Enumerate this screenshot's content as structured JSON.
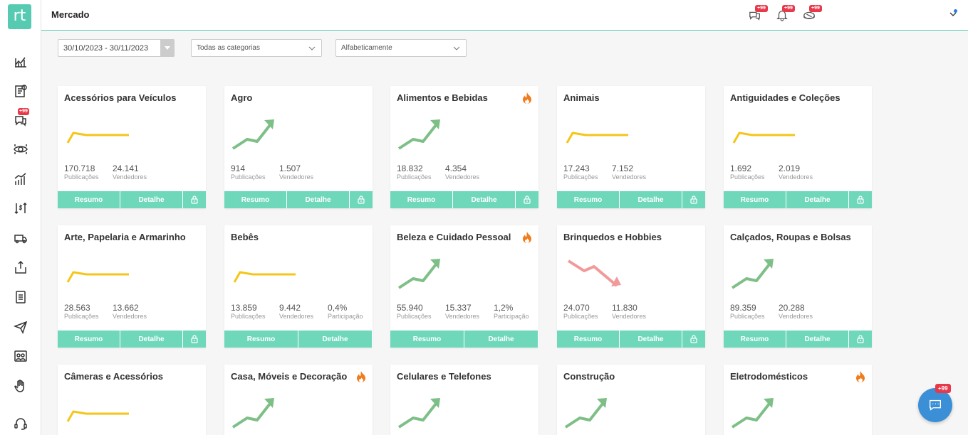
{
  "app": {
    "logo_text": "rt",
    "page_title": "Mercado"
  },
  "sidebar": {
    "items": [
      {
        "icon": "chart-line-icon"
      },
      {
        "icon": "invoice-icon"
      },
      {
        "icon": "chat-bubbles-icon",
        "badge": "+99"
      },
      {
        "icon": "eye-icon"
      },
      {
        "icon": "bar-chart-icon",
        "active": true
      },
      {
        "icon": "money-transfer-icon"
      },
      {
        "icon": "truck-icon"
      },
      {
        "icon": "upload-box-icon"
      },
      {
        "icon": "document-icon"
      },
      {
        "icon": "paper-plane-icon"
      },
      {
        "icon": "users-icon"
      },
      {
        "icon": "hand-icon"
      },
      {
        "icon": "headset-icon"
      }
    ]
  },
  "topbar": {
    "chat_badge": "+99",
    "bell_badge": "+99",
    "box_badge": "+99"
  },
  "filters": {
    "date_range": "30/10/2023 - 30/11/2023",
    "category": "Todas as categorias",
    "sort": "Alfabeticamente"
  },
  "labels": {
    "publicacoes": "Publicações",
    "vendedores": "Vendedores",
    "participacao": "Participação",
    "resumo": "Resumo",
    "detalhe": "Detalhe"
  },
  "trend_colors": {
    "up": "#7dbf86",
    "flat": "#f5c518",
    "down": "#f29a9a",
    "fire": "#f07d1d"
  },
  "cards": [
    {
      "title": "Acessórios para Veículos",
      "trend": "flat",
      "hot": false,
      "publicacoes": "170.718",
      "vendedores": "24.141",
      "participacao": "",
      "locked": true
    },
    {
      "title": "Agro",
      "trend": "up",
      "hot": false,
      "publicacoes": "914",
      "vendedores": "1.507",
      "participacao": "",
      "locked": true
    },
    {
      "title": "Alimentos e Bebidas",
      "trend": "up",
      "hot": true,
      "publicacoes": "18.832",
      "vendedores": "4.354",
      "participacao": "",
      "locked": true
    },
    {
      "title": "Animais",
      "trend": "flat",
      "hot": false,
      "publicacoes": "17.243",
      "vendedores": "7.152",
      "participacao": "",
      "locked": true
    },
    {
      "title": "Antiguidades e Coleções",
      "trend": "flat",
      "hot": false,
      "publicacoes": "1.692",
      "vendedores": "2.019",
      "participacao": "",
      "locked": true
    },
    {
      "title": "Arte, Papelaria e Armarinho",
      "trend": "flat",
      "hot": false,
      "publicacoes": "28.563",
      "vendedores": "13.662",
      "participacao": "",
      "locked": true
    },
    {
      "title": "Bebês",
      "trend": "flat",
      "hot": false,
      "publicacoes": "13.859",
      "vendedores": "9.442",
      "participacao": "0,4%",
      "locked": false
    },
    {
      "title": "Beleza e Cuidado Pessoal",
      "trend": "up",
      "hot": true,
      "publicacoes": "55.940",
      "vendedores": "15.337",
      "participacao": "1,2%",
      "locked": false
    },
    {
      "title": "Brinquedos e Hobbies",
      "trend": "down",
      "hot": false,
      "publicacoes": "24.070",
      "vendedores": "11.830",
      "participacao": "",
      "locked": true
    },
    {
      "title": "Calçados, Roupas e Bolsas",
      "trend": "up",
      "hot": false,
      "publicacoes": "89.359",
      "vendedores": "20.288",
      "participacao": "",
      "locked": true
    },
    {
      "title": "Câmeras e Acessórios",
      "trend": "flat",
      "hot": false
    },
    {
      "title": "Casa, Móveis e Decoração",
      "trend": "up",
      "hot": true
    },
    {
      "title": "Celulares e Telefones",
      "trend": "up",
      "hot": false
    },
    {
      "title": "Construção",
      "trend": "up",
      "hot": false
    },
    {
      "title": "Eletrodomésticos",
      "trend": "up",
      "hot": true
    }
  ],
  "chat_fab": {
    "badge": "+99"
  }
}
